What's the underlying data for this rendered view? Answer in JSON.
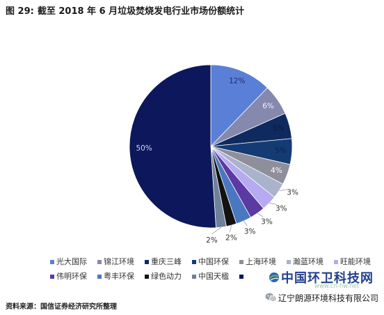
{
  "figure": {
    "number": "图 29:",
    "source": "资料来源：国信证券经济研究所整理"
  },
  "chart_data": {
    "type": "pie",
    "title": "截至 2018 年 6 月垃圾焚烧发电行业市场份额统计",
    "categories": [
      "光大国际",
      "锦江环境",
      "重庆三峰",
      "中国环保",
      "上海环境",
      "瀚蓝环境",
      "旺能环境",
      "伟明环保",
      "粤丰环保",
      "绿色动力",
      "中国天楹",
      ""
    ],
    "values": [
      12,
      6,
      5,
      5,
      4,
      3,
      3,
      3,
      3,
      2,
      2,
      50
    ],
    "data_labels": [
      "12%",
      "6%",
      "5%",
      "5%",
      "4%",
      "3%",
      "3%",
      "3%",
      "3%",
      "2%",
      "2%",
      "50%"
    ],
    "colors": [
      "#5a7fd6",
      "#8589ad",
      "#0f2a5e",
      "#153b74",
      "#8e8f9a",
      "#a9b3cc",
      "#b6aaf0",
      "#5b3aa3",
      "#4a78c0",
      "#121212",
      "#6f8099",
      "#0c175c"
    ],
    "label_colors": [
      "#1e2f6e",
      "#f0f0f5",
      "#0b1a44",
      "#0b2250",
      "#ffffff",
      "#333333",
      "#333333",
      "#333333",
      "#333333",
      "#333333",
      "#333333",
      "#d6d9ea"
    ],
    "legend_position": "bottom"
  },
  "watermark": {
    "site_name": "中国环卫科技网",
    "site_url": "www.cn-hw.net",
    "company": "辽宁朗源环境科技有限公司",
    "site_logo_icon": "globe-logo-icon",
    "company_icon": "wechat-icon"
  }
}
